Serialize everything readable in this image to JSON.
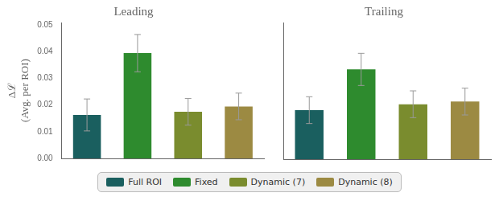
{
  "chart_data": [
    {
      "type": "bar",
      "title": "Leading",
      "categories": [
        "Full ROI",
        "Fixed",
        "Dynamic (7)",
        "Dynamic (8)"
      ],
      "values": [
        0.0163,
        0.0395,
        0.0175,
        0.0195
      ],
      "errors": [
        0.006,
        0.007,
        0.005,
        0.005
      ],
      "colors": [
        "#1a5f5f",
        "#2e8b2e",
        "#7a8c2e",
        "#9c8a42"
      ],
      "ylabel": [
        "Δℒ",
        "(Avg. per ROI)"
      ],
      "ylim": [
        0.0,
        0.051
      ],
      "yticks": [
        {
          "value": 0.0,
          "label": "0.00"
        },
        {
          "value": 0.01,
          "label": "0.01"
        },
        {
          "value": 0.02,
          "label": "0.02"
        },
        {
          "value": 0.03,
          "label": "0.03"
        },
        {
          "value": 0.04,
          "label": "0.04"
        },
        {
          "value": 0.05,
          "label": "0.05"
        }
      ],
      "grid": false,
      "tick_labels": "y",
      "legend": "bottom"
    },
    {
      "type": "bar",
      "title": "Trailing",
      "categories": [
        "Full ROI",
        "Fixed",
        "Dynamic (7)",
        "Dynamic (8)"
      ],
      "values": [
        0.0183,
        0.0335,
        0.0205,
        0.0215
      ],
      "errors": [
        0.005,
        0.006,
        0.005,
        0.005
      ],
      "colors": [
        "#1a5f5f",
        "#2e8b2e",
        "#7a8c2e",
        "#9c8a42"
      ],
      "ylim": [
        0.0,
        0.051
      ],
      "yticks": [
        {
          "value": 0.0,
          "label": "0.00"
        },
        {
          "value": 0.01,
          "label": "0.01"
        },
        {
          "value": 0.02,
          "label": "0.02"
        },
        {
          "value": 0.03,
          "label": "0.03"
        },
        {
          "value": 0.04,
          "label": "0.04"
        },
        {
          "value": 0.05,
          "label": "0.05"
        }
      ],
      "grid": false,
      "tick_labels": false,
      "legend": "bottom"
    }
  ]
}
